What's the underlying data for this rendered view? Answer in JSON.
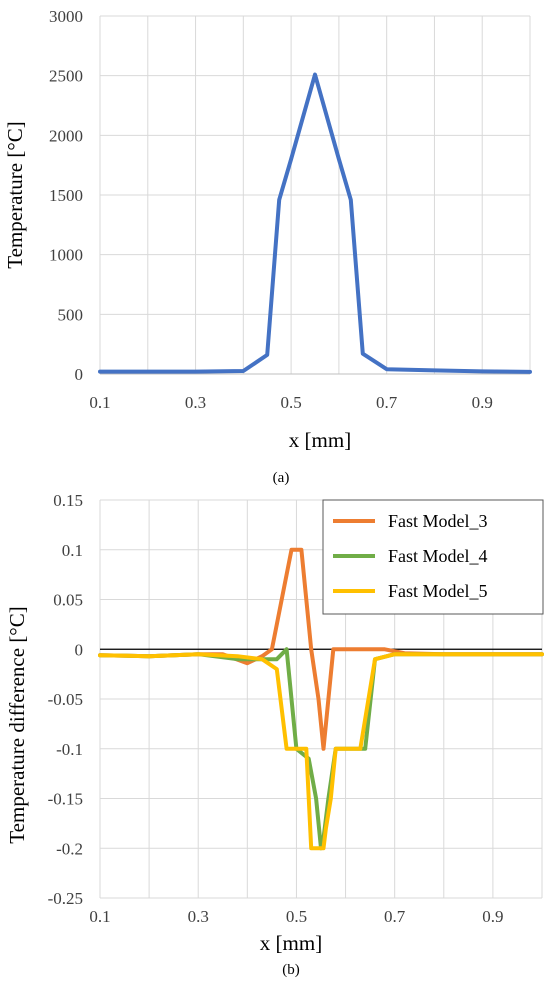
{
  "chart_data": [
    {
      "type": "line",
      "panel_label": "(a)",
      "xlabel": "x [mm]",
      "ylabel": "Temperature [°C]",
      "xlim": [
        0.1,
        1.0
      ],
      "ylim": [
        0,
        3000
      ],
      "x_ticks": [
        0.1,
        0.3,
        0.5,
        0.7,
        0.9
      ],
      "x_tick_labels": [
        "0.1",
        "0.3",
        "0.5",
        "0.7",
        "0.9"
      ],
      "y_ticks": [
        0,
        500,
        1000,
        1500,
        2000,
        2500,
        3000
      ],
      "y_tick_labels": [
        "0",
        "500",
        "1000",
        "1500",
        "2000",
        "2500",
        "3000"
      ],
      "grid": true,
      "series": [
        {
          "color": "#4472c4",
          "x": [
            0.1,
            0.2,
            0.3,
            0.4,
            0.45,
            0.475,
            0.5,
            0.55,
            0.6,
            0.625,
            0.65,
            0.7,
            0.8,
            0.9,
            1.0
          ],
          "y": [
            20,
            20,
            20,
            25,
            160,
            1460,
            1800,
            2510,
            1800,
            1460,
            170,
            40,
            30,
            22,
            18
          ]
        }
      ]
    },
    {
      "type": "line",
      "panel_label": "(b)",
      "xlabel": "x [mm]",
      "ylabel": "Temperature difference [°C]",
      "xlim": [
        0.1,
        1.0
      ],
      "ylim": [
        -0.25,
        0.15
      ],
      "x_ticks": [
        0.1,
        0.3,
        0.5,
        0.7,
        0.9
      ],
      "x_tick_labels": [
        "0.1",
        "0.3",
        "0.5",
        "0.7",
        "0.9"
      ],
      "y_ticks": [
        -0.25,
        -0.2,
        -0.15,
        -0.1,
        -0.05,
        0,
        0.05,
        0.1,
        0.15
      ],
      "y_tick_labels": [
        "-0.25",
        "-0.2",
        "-0.15",
        "-0.1",
        "-0.05",
        "0",
        "0.05",
        "0.1",
        "0.15"
      ],
      "grid": true,
      "legend_position": "top-right",
      "series": [
        {
          "name": "Fast Model_3",
          "color": "#ed7d31",
          "x": [
            0.1,
            0.2,
            0.3,
            0.35,
            0.4,
            0.43,
            0.45,
            0.47,
            0.49,
            0.51,
            0.53,
            0.545,
            0.555,
            0.565,
            0.575,
            0.62,
            0.68,
            0.72,
            0.8,
            0.9,
            1.0
          ],
          "y": [
            -0.006,
            -0.007,
            -0.005,
            -0.005,
            -0.014,
            -0.007,
            0.0,
            0.05,
            0.1,
            0.1,
            0.0,
            -0.05,
            -0.1,
            -0.05,
            0.0,
            0.0,
            0.0,
            -0.004,
            -0.005,
            -0.005,
            -0.005
          ]
        },
        {
          "name": "Fast Model_4",
          "color": "#70ad47",
          "x": [
            0.1,
            0.2,
            0.3,
            0.38,
            0.43,
            0.46,
            0.48,
            0.5,
            0.525,
            0.54,
            0.55,
            0.555,
            0.565,
            0.58,
            0.6,
            0.62,
            0.64,
            0.66,
            0.7,
            0.8,
            0.9,
            1.0
          ],
          "y": [
            -0.006,
            -0.007,
            -0.005,
            -0.01,
            -0.01,
            -0.01,
            0.0,
            -0.1,
            -0.11,
            -0.15,
            -0.2,
            -0.19,
            -0.15,
            -0.1,
            -0.1,
            -0.1,
            -0.1,
            -0.01,
            -0.005,
            -0.005,
            -0.005,
            -0.005
          ]
        },
        {
          "name": "Fast Model_5",
          "color": "#ffc000",
          "x": [
            0.1,
            0.2,
            0.3,
            0.38,
            0.43,
            0.46,
            0.48,
            0.5,
            0.52,
            0.53,
            0.545,
            0.555,
            0.56,
            0.57,
            0.58,
            0.63,
            0.66,
            0.7,
            0.8,
            0.9,
            1.0
          ],
          "y": [
            -0.006,
            -0.007,
            -0.005,
            -0.007,
            -0.01,
            -0.02,
            -0.1,
            -0.1,
            -0.1,
            -0.2,
            -0.2,
            -0.2,
            -0.18,
            -0.15,
            -0.1,
            -0.1,
            -0.01,
            -0.005,
            -0.005,
            -0.005,
            -0.005
          ]
        }
      ]
    }
  ]
}
